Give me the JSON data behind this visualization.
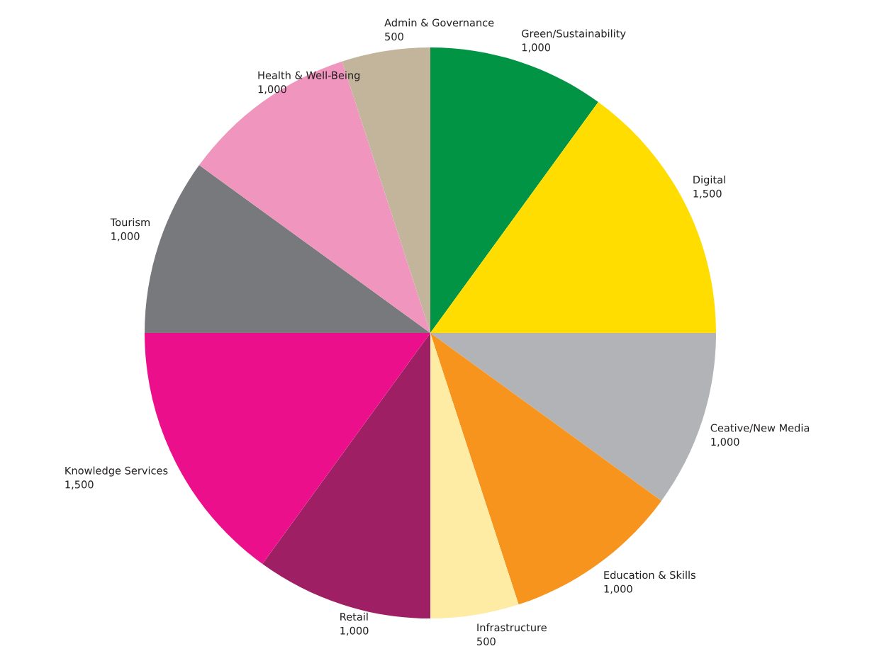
{
  "chart_data": {
    "type": "pie",
    "categories": [
      "Green/Sustainability",
      "Digital",
      "Ceative/New Media",
      "Education & Skills",
      "Infrastructure",
      "Retail",
      "Knowledge Services",
      "Tourism",
      "Health & Well-Being",
      "Admin & Governance"
    ],
    "values": [
      1000,
      1500,
      1000,
      1000,
      500,
      1000,
      1500,
      1000,
      1000,
      500
    ],
    "value_labels": [
      "1,000",
      "1,500",
      "1,000",
      "1,000",
      "500",
      "1,000",
      "1,500",
      "1,000",
      "1,000",
      "500"
    ],
    "colors": [
      "#009444",
      "#ffdd00",
      "#b1b3b6",
      "#f7941d",
      "#feeba4",
      "#9e1f63",
      "#ec0f8c",
      "#78797c",
      "#f096be",
      "#c2b59b"
    ],
    "legend": false
  }
}
